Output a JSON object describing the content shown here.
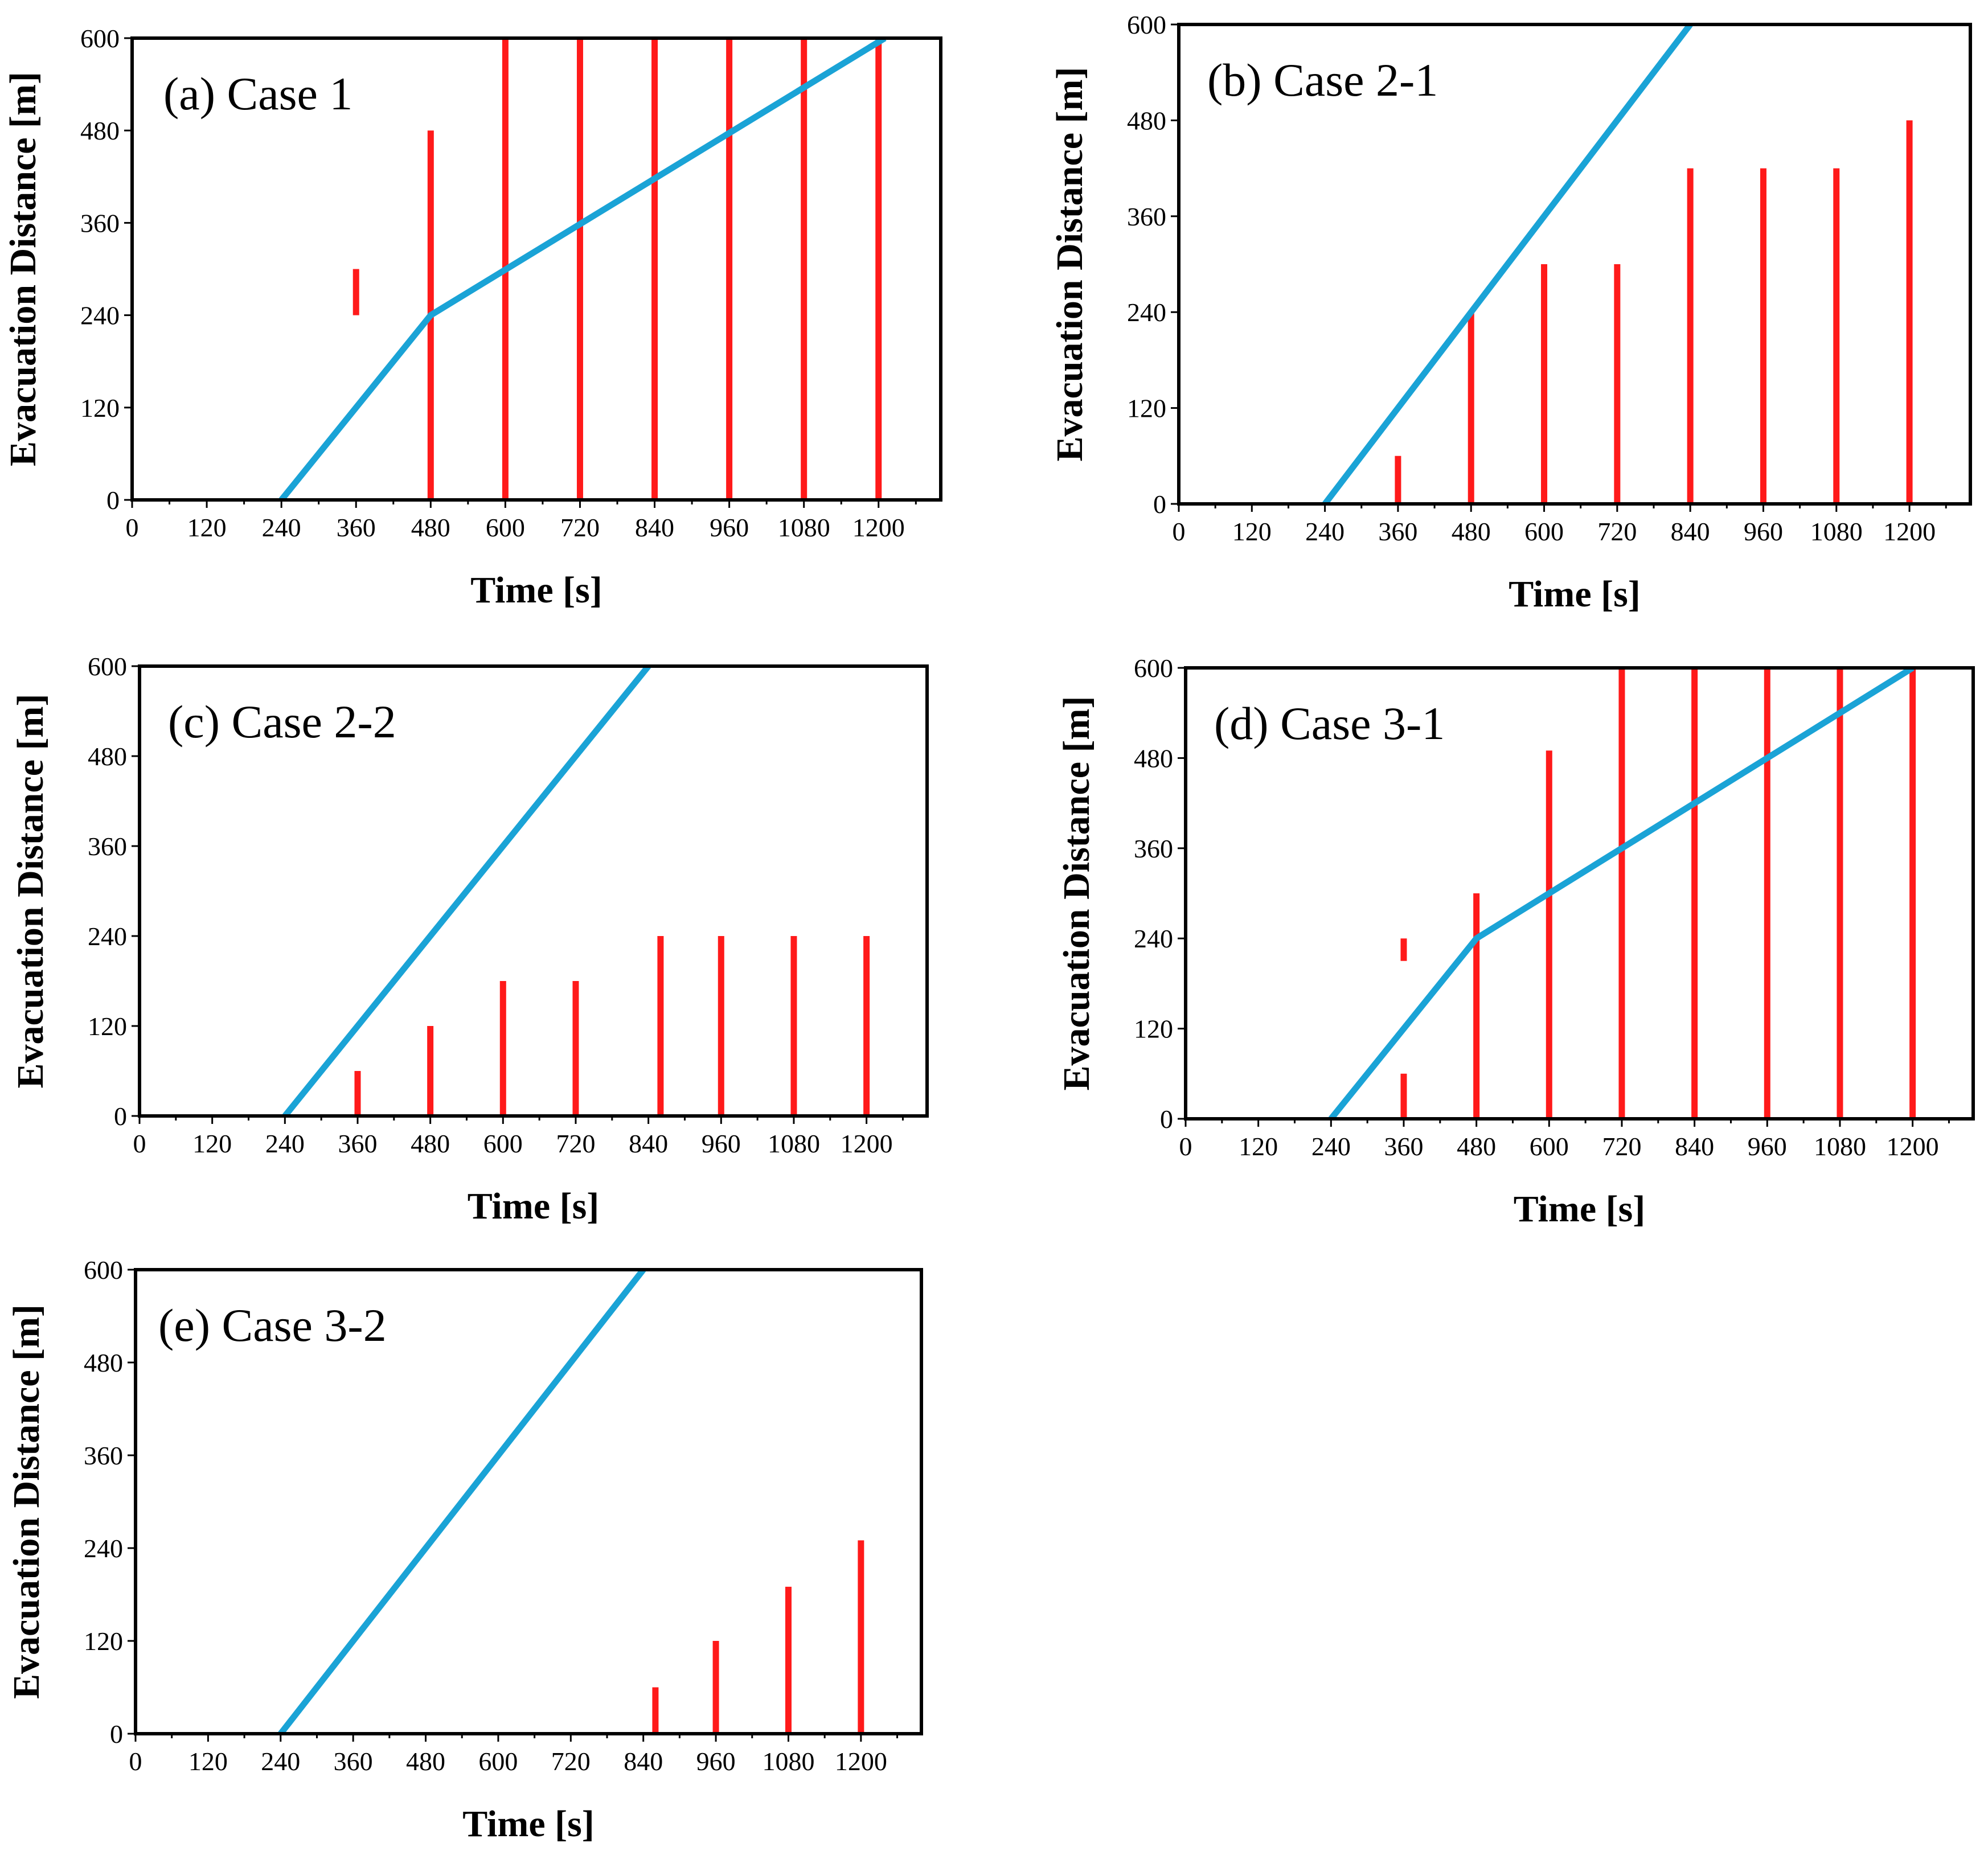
{
  "colors": {
    "evacuation": "#1aa3d6",
    "flood": "#ff1a1a",
    "axis": "#000000"
  },
  "chart_data": [
    {
      "type": "line",
      "id": "a",
      "title": "(a) Case 1",
      "xlabel": "Time [s]",
      "ylabel": "Evacuation Distance [m]",
      "xlim": [
        0,
        1300
      ],
      "ylim": [
        0,
        600
      ],
      "xticks": [
        0,
        120,
        240,
        360,
        480,
        600,
        720,
        840,
        960,
        1080,
        1200
      ],
      "yticks": [
        0,
        120,
        240,
        360,
        480,
        600
      ],
      "series": [
        {
          "name": "Evacuation",
          "x": [
            240,
            480,
            1210
          ],
          "y": [
            0,
            240,
            600
          ]
        }
      ],
      "bars": [
        {
          "x": 360,
          "y0": 240,
          "y1": 300
        },
        {
          "x": 480,
          "y0": 0,
          "y1": 480
        },
        {
          "x": 600,
          "y0": 0,
          "y1": 600
        },
        {
          "x": 720,
          "y0": 0,
          "y1": 600
        },
        {
          "x": 840,
          "y0": 0,
          "y1": 600
        },
        {
          "x": 960,
          "y0": 0,
          "y1": 600
        },
        {
          "x": 1080,
          "y0": 0,
          "y1": 600
        },
        {
          "x": 1200,
          "y0": 0,
          "y1": 600
        }
      ]
    },
    {
      "type": "line",
      "id": "b",
      "title": "(b) Case 2-1",
      "xlabel": "Time [s]",
      "ylabel": "Evacuation Distance [m]",
      "xlim": [
        0,
        1300
      ],
      "ylim": [
        0,
        600
      ],
      "xticks": [
        0,
        120,
        240,
        360,
        480,
        600,
        720,
        840,
        960,
        1080,
        1200
      ],
      "yticks": [
        0,
        120,
        240,
        360,
        480,
        600
      ],
      "series": [
        {
          "name": "Evacuation",
          "x": [
            240,
            840
          ],
          "y": [
            0,
            600
          ]
        }
      ],
      "bars": [
        {
          "x": 360,
          "y0": 0,
          "y1": 60
        },
        {
          "x": 480,
          "y0": 0,
          "y1": 240
        },
        {
          "x": 600,
          "y0": 0,
          "y1": 300
        },
        {
          "x": 720,
          "y0": 0,
          "y1": 300
        },
        {
          "x": 840,
          "y0": 0,
          "y1": 420
        },
        {
          "x": 960,
          "y0": 0,
          "y1": 420
        },
        {
          "x": 1080,
          "y0": 0,
          "y1": 420
        },
        {
          "x": 1200,
          "y0": 0,
          "y1": 480
        }
      ]
    },
    {
      "type": "line",
      "id": "c",
      "title": "(c) Case 2-2",
      "xlabel": "Time [s]",
      "ylabel": "Evacuation Distance [m]",
      "xlim": [
        0,
        1300
      ],
      "ylim": [
        0,
        600
      ],
      "xticks": [
        0,
        120,
        240,
        360,
        480,
        600,
        720,
        840,
        960,
        1080,
        1200
      ],
      "yticks": [
        0,
        120,
        240,
        360,
        480,
        600
      ],
      "series": [
        {
          "name": "Evacuation",
          "x": [
            240,
            840
          ],
          "y": [
            0,
            600
          ]
        }
      ],
      "bars": [
        {
          "x": 360,
          "y0": 0,
          "y1": 60
        },
        {
          "x": 480,
          "y0": 0,
          "y1": 120
        },
        {
          "x": 600,
          "y0": 0,
          "y1": 180
        },
        {
          "x": 720,
          "y0": 0,
          "y1": 180
        },
        {
          "x": 860,
          "y0": 0,
          "y1": 240
        },
        {
          "x": 960,
          "y0": 0,
          "y1": 240
        },
        {
          "x": 1080,
          "y0": 0,
          "y1": 240
        },
        {
          "x": 1200,
          "y0": 0,
          "y1": 240
        }
      ]
    },
    {
      "type": "line",
      "id": "d",
      "title": "(d) Case 3-1",
      "xlabel": "Time [s]",
      "ylabel": "Evacuation Distance [m]",
      "xlim": [
        0,
        1300
      ],
      "ylim": [
        0,
        600
      ],
      "xticks": [
        0,
        120,
        240,
        360,
        480,
        600,
        720,
        840,
        960,
        1080,
        1200
      ],
      "yticks": [
        0,
        120,
        240,
        360,
        480,
        600
      ],
      "series": [
        {
          "name": "Evacuation",
          "x": [
            240,
            480,
            1200
          ],
          "y": [
            0,
            240,
            600
          ]
        }
      ],
      "bars": [
        {
          "x": 360,
          "y0": 0,
          "y1": 60
        },
        {
          "x": 360,
          "y0": 210,
          "y1": 240
        },
        {
          "x": 480,
          "y0": 0,
          "y1": 300
        },
        {
          "x": 600,
          "y0": 0,
          "y1": 490
        },
        {
          "x": 720,
          "y0": 0,
          "y1": 600
        },
        {
          "x": 840,
          "y0": 0,
          "y1": 600
        },
        {
          "x": 960,
          "y0": 0,
          "y1": 600
        },
        {
          "x": 1080,
          "y0": 0,
          "y1": 600
        },
        {
          "x": 1200,
          "y0": 0,
          "y1": 600
        }
      ]
    },
    {
      "type": "line",
      "id": "e",
      "title": "(e) Case 3-2",
      "xlabel": "Time [s]",
      "ylabel": "Evacuation Distance [m]",
      "xlim": [
        0,
        1300
      ],
      "ylim": [
        0,
        600
      ],
      "xticks": [
        0,
        120,
        240,
        360,
        480,
        600,
        720,
        840,
        960,
        1080,
        1200
      ],
      "yticks": [
        0,
        120,
        240,
        360,
        480,
        600
      ],
      "series": [
        {
          "name": "Evacuation",
          "x": [
            240,
            840
          ],
          "y": [
            0,
            600
          ]
        }
      ],
      "bars": [
        {
          "x": 860,
          "y0": 0,
          "y1": 60
        },
        {
          "x": 960,
          "y0": 0,
          "y1": 120
        },
        {
          "x": 1080,
          "y0": 0,
          "y1": 190
        },
        {
          "x": 1200,
          "y0": 0,
          "y1": 250
        }
      ]
    }
  ]
}
